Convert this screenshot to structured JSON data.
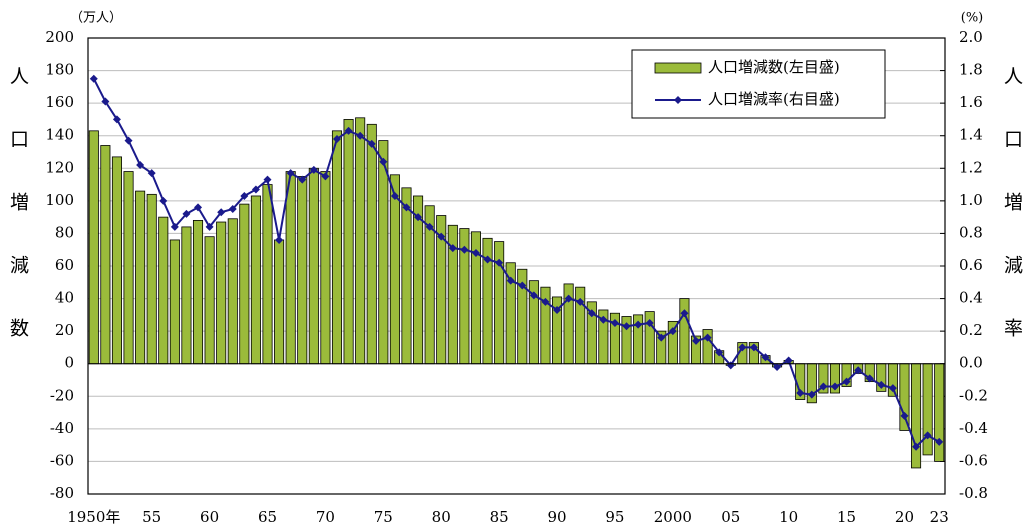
{
  "chart_data": {
    "type": "bar-line",
    "y_unit": "（万人）",
    "y2_unit": "(%)",
    "ylabel": "人口増減数",
    "y2label": "人口増減率",
    "categories": [
      "1950年",
      null,
      null,
      null,
      null,
      "55",
      null,
      null,
      null,
      null,
      "60",
      null,
      null,
      null,
      null,
      "65",
      null,
      null,
      null,
      null,
      "70",
      null,
      null,
      null,
      null,
      "75",
      null,
      null,
      null,
      null,
      "80",
      null,
      null,
      null,
      null,
      "85",
      null,
      null,
      null,
      null,
      "90",
      null,
      null,
      null,
      null,
      "95",
      null,
      null,
      null,
      null,
      "2000",
      null,
      null,
      null,
      null,
      "05",
      null,
      null,
      null,
      null,
      "10",
      null,
      null,
      null,
      null,
      "15",
      null,
      null,
      null,
      null,
      "20",
      null,
      null,
      "23"
    ],
    "series": [
      {
        "name": "人口増減数(左目盛)",
        "type": "bar",
        "color": "#9bbb3b",
        "values": [
          143,
          134,
          127,
          118,
          106,
          104,
          90,
          76,
          84,
          88,
          78,
          87,
          89,
          98,
          103,
          110,
          76,
          118,
          115,
          120,
          118,
          143,
          150,
          151,
          147,
          137,
          116,
          108,
          103,
          97,
          91,
          85,
          83,
          81,
          77,
          75,
          62,
          58,
          51,
          47,
          41,
          49,
          47,
          38,
          33,
          31,
          29,
          30,
          32,
          20,
          26,
          40,
          17,
          21,
          8,
          -1,
          13,
          13,
          5,
          -2,
          2,
          -22,
          -24,
          -18,
          -18,
          -14,
          -6,
          -11,
          -17,
          -20,
          -41,
          -64,
          -56,
          -60
        ]
      },
      {
        "name": "人口増減率(右目盛)",
        "type": "line",
        "axis": "y2",
        "color": "#1a1a8c",
        "values": [
          1.75,
          1.61,
          1.5,
          1.37,
          1.22,
          1.17,
          1.0,
          0.84,
          0.92,
          0.96,
          0.84,
          0.93,
          0.95,
          1.03,
          1.07,
          1.13,
          0.76,
          1.17,
          1.13,
          1.19,
          1.15,
          1.38,
          1.43,
          1.4,
          1.35,
          1.24,
          1.03,
          0.96,
          0.9,
          0.84,
          0.78,
          0.71,
          0.7,
          0.68,
          0.64,
          0.62,
          0.51,
          0.48,
          0.42,
          0.38,
          0.33,
          0.4,
          0.38,
          0.31,
          0.27,
          0.25,
          0.23,
          0.24,
          0.25,
          0.16,
          0.2,
          0.31,
          0.14,
          0.16,
          0.07,
          -0.01,
          0.1,
          0.1,
          0.04,
          -0.02,
          0.02,
          -0.18,
          -0.19,
          -0.14,
          -0.14,
          -0.11,
          -0.04,
          -0.09,
          -0.13,
          -0.15,
          -0.32,
          -0.51,
          -0.44,
          -0.48
        ]
      }
    ],
    "ylim": [
      -80,
      200
    ],
    "yticks": [
      -80,
      -60,
      -40,
      -20,
      0,
      20,
      40,
      60,
      80,
      100,
      120,
      140,
      160,
      180,
      200
    ],
    "y2lim": [
      -0.8,
      2.0
    ],
    "y2ticks": [
      -0.8,
      -0.6,
      -0.4,
      -0.2,
      {
        "value": 0,
        "label": "0.0"
      },
      0.2,
      0.4,
      0.6,
      0.8,
      {
        "value": 1,
        "label": "1.0"
      },
      1.2,
      1.4,
      1.6,
      1.8,
      {
        "value": 2,
        "label": "2.0"
      }
    ],
    "grid": true,
    "legend": "upper right"
  }
}
